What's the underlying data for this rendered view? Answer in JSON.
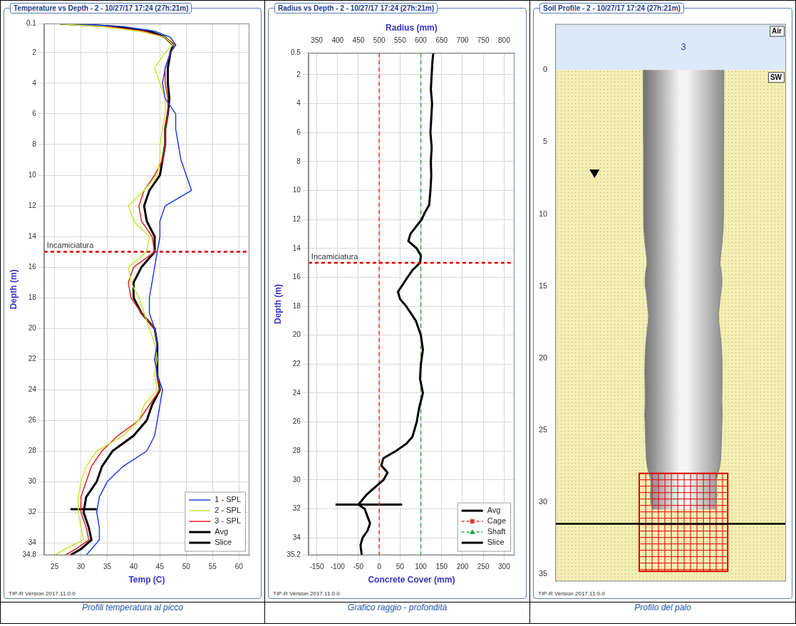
{
  "chart_data": [
    {
      "type": "line",
      "title": "Temperature vs Depth - 2 - 10/27/17 17:24 (27h:21m)",
      "caption": "Profili temperatura al picco",
      "footer": "TIP-R Version 2017.11.0.0",
      "x_label": "Temp (C)",
      "y_label": "Depth (m)",
      "xlim": [
        23,
        62
      ],
      "xticks": [
        25,
        30,
        35,
        40,
        45,
        50,
        55,
        60
      ],
      "ylim": [
        34.8,
        0.1
      ],
      "yticks": [
        0.1,
        2,
        4,
        6,
        8,
        10,
        12,
        14,
        16,
        18,
        20,
        22,
        24,
        26,
        28,
        30,
        32,
        34,
        34.8
      ],
      "grid": true,
      "legend": "lower right",
      "annotations": [
        {
          "text": "Incamiciatura",
          "y": 15,
          "color": "#e00000",
          "line_style": "dashed"
        }
      ],
      "series": [
        {
          "name": "1 - SPL",
          "color": "#2040e0",
          "line_style": "solid",
          "y": [
            0.1,
            0.3,
            0.6,
            1,
            1.5,
            2,
            3,
            4,
            5,
            6,
            7,
            8,
            9,
            10,
            11,
            12,
            13,
            14,
            15,
            16,
            17,
            18,
            19,
            20,
            21,
            22,
            23,
            24,
            25,
            26,
            27,
            28,
            29,
            30,
            31,
            32,
            33,
            33.8,
            34.4,
            34.8
          ],
          "x": [
            28,
            38,
            44,
            47,
            48,
            47,
            46,
            45.5,
            46,
            48,
            48,
            48.5,
            49,
            50,
            51,
            46,
            45,
            45,
            44.5,
            44,
            43.5,
            43,
            43,
            44,
            44.5,
            44,
            44.5,
            45.5,
            45,
            44.5,
            44,
            42.5,
            38,
            35,
            33.5,
            33,
            33.5,
            33.5,
            32,
            31
          ]
        },
        {
          "name": "2 - SPL",
          "color": "#c8e830",
          "line_style": "solid",
          "y": [
            0.1,
            0.3,
            0.6,
            1,
            1.5,
            2,
            3,
            4,
            5,
            6,
            7,
            8,
            9,
            10,
            11,
            12,
            13,
            14,
            15,
            16,
            17,
            18,
            19,
            20,
            21,
            22,
            23,
            24,
            25,
            26,
            27,
            28,
            29,
            30,
            31,
            32,
            33,
            33.8,
            34.4,
            34.8
          ],
          "x": [
            25,
            34,
            41,
            46,
            47.5,
            46,
            44,
            45,
            46,
            46,
            45.5,
            45,
            45,
            44.5,
            42,
            39,
            40,
            43,
            42.5,
            39,
            39.5,
            41,
            42,
            43,
            44,
            44.5,
            44,
            44.5,
            42,
            41,
            38,
            33,
            31,
            30,
            29.5,
            29.5,
            30,
            30.5,
            27,
            25
          ]
        },
        {
          "name": "3 - SPL",
          "color": "#e02020",
          "line_style": "solid",
          "y": [
            0.1,
            0.3,
            0.6,
            1,
            1.5,
            2,
            3,
            4,
            5,
            6,
            7,
            8,
            9,
            10,
            11,
            12,
            13,
            14,
            15,
            16,
            17,
            18,
            19,
            20,
            21,
            22,
            23,
            24,
            25,
            26,
            27,
            28,
            29,
            30,
            31,
            32,
            33,
            33.8,
            34.4,
            34.8
          ],
          "x": [
            26,
            35,
            42,
            46,
            48,
            47,
            46,
            46,
            46.5,
            46.5,
            46,
            46,
            45.5,
            44,
            42,
            41,
            41.5,
            43.5,
            44,
            40,
            39,
            39.5,
            41.5,
            44,
            44.5,
            44,
            44.5,
            45,
            43,
            41,
            37,
            34,
            32,
            31,
            30,
            30,
            31,
            31.5,
            29,
            27
          ]
        },
        {
          "name": "Avg",
          "color": "#000000",
          "line_style": "bold",
          "y": [
            0.1,
            0.3,
            0.6,
            1,
            1.5,
            2,
            3,
            4,
            5,
            6,
            7,
            8,
            9,
            10,
            11,
            12,
            13,
            14,
            15,
            16,
            17,
            18,
            19,
            20,
            21,
            22,
            23,
            24,
            25,
            26,
            27,
            28,
            29,
            30,
            31,
            32,
            33,
            33.8,
            34.4,
            34.8
          ],
          "x": [
            26,
            36,
            43,
            46,
            47.5,
            47,
            46.5,
            46.5,
            46.8,
            46.5,
            46,
            46,
            45.5,
            45,
            43,
            42,
            42.5,
            44,
            44,
            41.5,
            40,
            40,
            41.5,
            44,
            44.5,
            44.5,
            44.5,
            45,
            43.5,
            42.5,
            40,
            36,
            34,
            33,
            31,
            30.5,
            31.5,
            32,
            30,
            28
          ]
        },
        {
          "name": "Slice",
          "color": "#000000",
          "line_style": "bold",
          "y": [
            31.8,
            31.8
          ],
          "x": [
            28,
            33
          ]
        }
      ]
    },
    {
      "type": "line",
      "title": "Radius vs Depth - 2 - 10/27/17 17:24 (27h:21m)",
      "caption": "Grafico raggio - profondità",
      "footer": "TIP-R Version 2017.11.0.0",
      "x_label": "Concrete Cover (mm)",
      "x2_label": "Radius (mm)",
      "y_label": "Depth (m)",
      "xlim": [
        -170,
        325
      ],
      "xticks": [
        -150,
        -100,
        -50,
        0,
        50,
        100,
        150,
        200,
        250,
        300
      ],
      "x2lim": [
        330,
        825
      ],
      "x2ticks": [
        350,
        400,
        450,
        500,
        550,
        600,
        650,
        700,
        750,
        800
      ],
      "ylim": [
        35.2,
        0.5
      ],
      "yticks": [
        0.5,
        2,
        4,
        6,
        8,
        10,
        12,
        14,
        16,
        18,
        20,
        22,
        24,
        26,
        28,
        30,
        32,
        34,
        35.2
      ],
      "grid": true,
      "legend": "lower right",
      "annotations": [
        {
          "text": "Incamiciatura",
          "y": 15,
          "color": "#e00000",
          "line_style": "dashed"
        }
      ],
      "series": [
        {
          "name": "Avg",
          "color": "#000000",
          "line_style": "bold",
          "axis": "x2",
          "y": [
            0.5,
            1,
            2,
            3,
            4,
            5,
            6,
            7,
            8,
            9,
            10,
            11,
            11.5,
            12,
            13,
            13.5,
            14,
            14.5,
            15,
            15.5,
            16,
            17,
            17.5,
            18,
            19,
            20,
            21,
            22,
            23,
            24,
            25,
            26,
            27,
            27.5,
            28,
            28.5,
            29,
            29.5,
            30,
            30.5,
            31,
            31.7,
            32,
            33,
            33.5,
            34,
            34.5,
            35.2
          ],
          "x": [
            630,
            628,
            626,
            624,
            627,
            625,
            623,
            626,
            624,
            625,
            623,
            620,
            610,
            602,
            575,
            570,
            590,
            600,
            598,
            580,
            568,
            545,
            550,
            565,
            588,
            600,
            605,
            600,
            598,
            605,
            596,
            590,
            580,
            565,
            540,
            510,
            505,
            520,
            510,
            490,
            470,
            450,
            465,
            478,
            472,
            460,
            455,
            458
          ]
        },
        {
          "name": "Cage",
          "color": "#e8302a",
          "line_style": "dashed",
          "marker": "square",
          "axis": "x2",
          "y": [
            0.5,
            35.2
          ],
          "x": [
            500,
            500
          ]
        },
        {
          "name": "Shaft",
          "color": "#2aa84a",
          "line_style": "dashed",
          "marker": "triangle",
          "axis": "x2",
          "y": [
            0.5,
            35.2
          ],
          "x": [
            600,
            600
          ]
        },
        {
          "name": "Slice",
          "color": "#000000",
          "line_style": "bold",
          "axis": "x2",
          "y": [
            31.7,
            31.7
          ],
          "x": [
            395,
            555
          ]
        }
      ]
    },
    {
      "type": "profile",
      "title": "Soil Profile - 2 - 10/27/17 17:24 (27h:21m)",
      "caption": "Profilo del palo",
      "footer": "TIP-R Version 2017.11.0.0",
      "xlim": [
        -2000,
        1600
      ],
      "ylim": [
        35.5,
        -3.2
      ],
      "yticks": [
        0,
        5,
        10,
        15,
        20,
        25,
        30,
        35
      ],
      "tick_labels": "y",
      "grid": false,
      "layers": [
        {
          "name": "Air",
          "top": -3.2,
          "bottom": 0,
          "color": "#dce9f8"
        },
        {
          "name": "SW",
          "top": 0,
          "bottom": 35.5,
          "color": "#f3efb4"
        }
      ],
      "pile": {
        "label": "3",
        "color": "#8a8a8a",
        "depth": [
          0,
          2,
          4,
          6,
          8,
          10,
          11,
          11.5,
          12,
          13,
          13.5,
          14,
          14.5,
          15,
          15.5,
          16,
          17,
          17.5,
          18,
          19,
          20,
          21,
          22,
          23,
          24,
          25,
          26,
          27,
          27.5,
          28,
          28.5,
          29,
          29.5,
          30,
          30.5
        ],
        "radius": [
          630,
          626,
          627,
          623,
          624,
          623,
          620,
          610,
          602,
          575,
          570,
          590,
          600,
          598,
          580,
          568,
          545,
          550,
          565,
          588,
          600,
          605,
          600,
          598,
          605,
          596,
          590,
          580,
          565,
          540,
          510,
          505,
          520,
          510,
          490
        ]
      },
      "cage": {
        "top": 28,
        "bottom": 34.8,
        "radius": 690,
        "color": "#e00000"
      },
      "water_table": 7.2,
      "slice": 31.5
    }
  ]
}
